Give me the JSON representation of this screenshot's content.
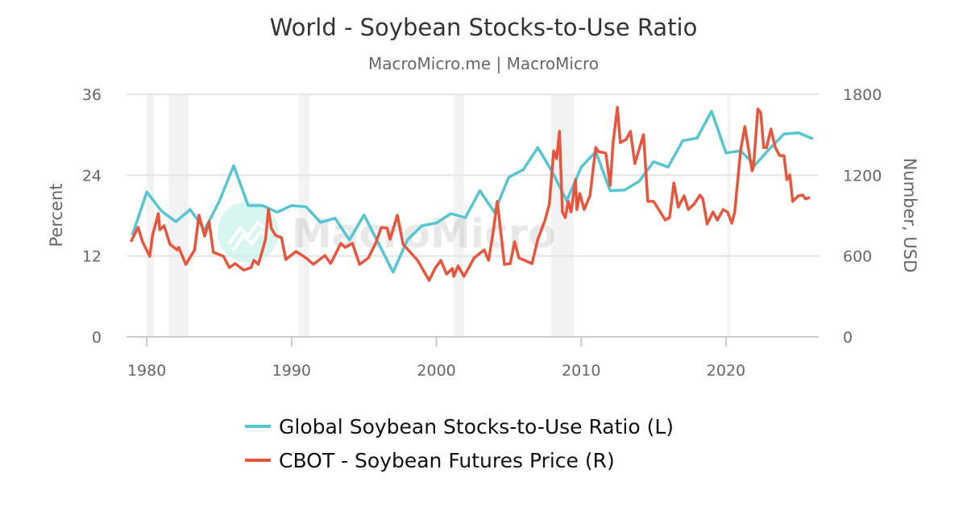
{
  "chart_data": {
    "type": "line",
    "title": "World - Soybean Stocks-to-Use Ratio",
    "subtitle": "MacroMicro.me | MacroMicro",
    "watermark": "MacroMicro",
    "xlim": [
      1978.6,
      2026.4
    ],
    "x_ticks": [
      1980,
      1990,
      2000,
      2010,
      2020
    ],
    "y_left": {
      "label": "Percent",
      "lim": [
        0,
        36
      ],
      "ticks": [
        0,
        12,
        24,
        36
      ]
    },
    "y_right": {
      "label": "Number, USD",
      "lim": [
        0,
        1800
      ],
      "ticks": [
        0,
        600,
        1200,
        1800
      ]
    },
    "grid": true,
    "legend_position": "bottom",
    "recession_bands": [
      [
        1980.0,
        1980.5
      ],
      [
        1981.5,
        1982.9
      ],
      [
        1990.5,
        1991.2
      ],
      [
        2001.2,
        2001.9
      ],
      [
        2007.9,
        2009.5
      ],
      [
        2020.1,
        2020.3
      ]
    ],
    "series": [
      {
        "name": "Global Soybean Stocks-to-Use Ratio (L)",
        "axis": "left",
        "color": "#56c5d2",
        "x": [
          1979,
          1980,
          1981,
          1982,
          1983,
          1984,
          1985,
          1986,
          1987,
          1988,
          1989,
          1990,
          1991,
          1992,
          1993,
          1994,
          1995,
          1996,
          1997,
          1998,
          1999,
          2000,
          2001,
          2002,
          2003,
          2004,
          2005,
          2006,
          2007,
          2008,
          2009,
          2010,
          2011,
          2012,
          2013,
          2014,
          2015,
          2016,
          2017,
          2018,
          2019,
          2020,
          2021,
          2022,
          2023,
          2024,
          2025,
          2026
        ],
        "y": [
          15.1,
          21.5,
          18.7,
          17.1,
          18.9,
          15.9,
          20.1,
          25.4,
          19.5,
          19.5,
          18.5,
          19.5,
          19.3,
          17.0,
          17.6,
          14.4,
          18.1,
          13.9,
          9.6,
          14.4,
          16.5,
          16.9,
          18.3,
          17.7,
          21.7,
          18.5,
          23.7,
          24.8,
          28.1,
          24.5,
          20.2,
          25.2,
          27.5,
          21.7,
          21.8,
          23.1,
          26.0,
          25.2,
          29.1,
          29.5,
          33.5,
          27.3,
          27.6,
          25.5,
          27.9,
          30.1,
          30.3,
          29.4
        ]
      },
      {
        "name": "CBOT - Soybean Futures Price (R)",
        "axis": "right",
        "color": "#e8553d",
        "x": [
          1978.9,
          1979.4,
          1979.7,
          1980.2,
          1980.4,
          1980.8,
          1980.9,
          1981.2,
          1981.6,
          1982.1,
          1982.2,
          1982.7,
          1983.3,
          1983.6,
          1984.0,
          1984.3,
          1984.6,
          1985.3,
          1985.7,
          1986.1,
          1986.7,
          1987.2,
          1987.4,
          1987.7,
          1988.0,
          1988.2,
          1988.4,
          1988.6,
          1988.9,
          1989.3,
          1989.6,
          1990.3,
          1991.0,
          1991.5,
          1992.3,
          1992.7,
          1993.4,
          1993.7,
          1994.2,
          1994.7,
          1995.3,
          1995.8,
          1996.2,
          1996.6,
          1996.8,
          1997.3,
          1997.7,
          1998.7,
          1999.5,
          1999.9,
          2000.3,
          2000.7,
          2001.1,
          2001.2,
          2001.5,
          2001.9,
          2002.3,
          2002.6,
          2003.3,
          2003.6,
          2003.9,
          2004.2,
          2004.7,
          2005.1,
          2005.4,
          2005.7,
          2006.6,
          2007.0,
          2007.5,
          2007.8,
          2008.1,
          2008.3,
          2008.5,
          2008.7,
          2008.9,
          2009.1,
          2009.3,
          2009.6,
          2009.7,
          2009.9,
          2010.2,
          2010.6,
          2011.0,
          2011.2,
          2011.7,
          2012.0,
          2012.2,
          2012.5,
          2012.7,
          2013.1,
          2013.4,
          2013.7,
          2014.3,
          2014.6,
          2015.0,
          2015.6,
          2015.8,
          2016.1,
          2016.4,
          2016.7,
          2017.1,
          2017.4,
          2017.8,
          2018.2,
          2018.4,
          2018.7,
          2019.1,
          2019.4,
          2019.8,
          2020.1,
          2020.4,
          2020.6,
          2021.0,
          2021.3,
          2021.8,
          2021.9,
          2022.2,
          2022.4,
          2022.6,
          2022.8,
          2023.1,
          2023.4,
          2023.7,
          2024.0,
          2024.2,
          2024.4,
          2024.6,
          2025.0,
          2025.3,
          2025.5,
          2025.8
        ],
        "y": [
          706,
          813,
          706,
          598,
          753,
          915,
          795,
          825,
          688,
          646,
          664,
          538,
          646,
          903,
          748,
          855,
          628,
          598,
          514,
          544,
          496,
          514,
          568,
          538,
          646,
          724,
          945,
          807,
          753,
          736,
          574,
          634,
          586,
          538,
          604,
          544,
          694,
          664,
          694,
          538,
          586,
          694,
          813,
          807,
          724,
          903,
          688,
          568,
          419,
          508,
          568,
          466,
          508,
          449,
          526,
          449,
          526,
          586,
          646,
          568,
          765,
          1005,
          538,
          544,
          706,
          586,
          544,
          724,
          867,
          987,
          1381,
          1322,
          1525,
          927,
          885,
          1005,
          927,
          1166,
          945,
          1064,
          945,
          1047,
          1405,
          1375,
          1363,
          1124,
          1441,
          1704,
          1441,
          1465,
          1525,
          1286,
          1501,
          1005,
          1005,
          903,
          867,
          885,
          1142,
          963,
          1047,
          945,
          987,
          1052,
          1023,
          837,
          927,
          867,
          945,
          927,
          843,
          927,
          1381,
          1561,
          1232,
          1262,
          1692,
          1662,
          1405,
          1405,
          1543,
          1405,
          1345,
          1345,
          1166,
          1202,
          1005,
          1047,
          1052,
          1023,
          1035
        ]
      }
    ]
  }
}
